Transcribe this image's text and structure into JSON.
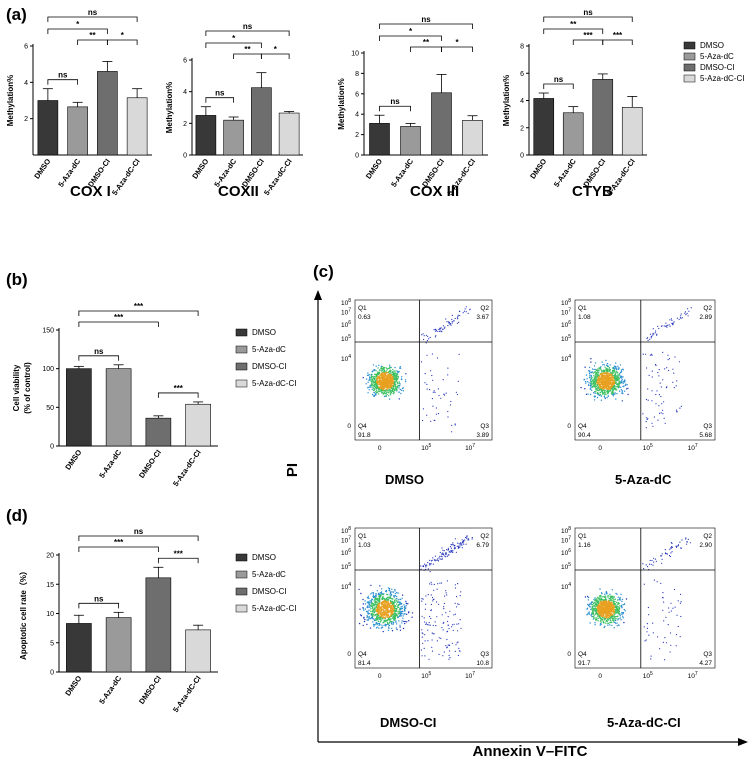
{
  "panels": {
    "a": "(a)",
    "b": "(b)",
    "c": "(c)",
    "d": "(d)"
  },
  "colors": {
    "DMSO": "#383838",
    "5-Aza-dC": "#9a9a9a",
    "DMSO-CI": "#6e6e6e",
    "5-Aza-dC-CI": "#d9d9d9"
  },
  "legend": [
    "DMSO",
    "5-Aza-dC",
    "DMSO-CI",
    "5-Aza-dC-CI"
  ],
  "chart_data": [
    {
      "id": "cox1",
      "type": "bar",
      "panel": "a",
      "title": "COX I",
      "ylabel": "Methylation%",
      "categories": [
        "DMSO",
        "5-Aza-dC",
        "DMSO-CI",
        "5-Aza-dC-CI"
      ],
      "values": [
        3.0,
        2.65,
        4.6,
        3.15
      ],
      "errors": [
        0.65,
        0.25,
        0.55,
        0.5
      ],
      "ylim": [
        0,
        6
      ],
      "yticks": [
        2,
        4,
        6
      ],
      "sig": [
        {
          "a": 0,
          "b": 1,
          "label": "ns"
        },
        {
          "a": 2,
          "b": 1,
          "label": "**"
        },
        {
          "a": 2,
          "b": 3,
          "label": "*"
        },
        {
          "a": 0,
          "b": 2,
          "label": "*"
        },
        {
          "a": 0,
          "b": 3,
          "label": "ns"
        }
      ]
    },
    {
      "id": "cox2",
      "type": "bar",
      "panel": "a",
      "title": "COXII",
      "ylabel": "Methylation%",
      "categories": [
        "DMSO",
        "5-Aza-dC",
        "DMSO-CI",
        "5-Aza-dC-CI"
      ],
      "values": [
        2.5,
        2.2,
        4.25,
        2.65
      ],
      "errors": [
        0.55,
        0.2,
        0.95,
        0.1
      ],
      "ylim": [
        0,
        6
      ],
      "yticks": [
        0,
        2,
        4,
        6
      ],
      "sig": [
        {
          "a": 0,
          "b": 1,
          "label": "ns"
        },
        {
          "a": 2,
          "b": 1,
          "label": "**"
        },
        {
          "a": 2,
          "b": 3,
          "label": "*"
        },
        {
          "a": 0,
          "b": 2,
          "label": "*"
        },
        {
          "a": 0,
          "b": 3,
          "label": "ns"
        }
      ]
    },
    {
      "id": "cox3",
      "type": "bar",
      "panel": "a",
      "title": "COX III",
      "ylabel": "Methylation%",
      "categories": [
        "DMSO",
        "5-Aza-dC",
        "DMSO-CI",
        "5-Aza-dC-CI"
      ],
      "values": [
        3.1,
        2.8,
        6.1,
        3.4
      ],
      "errors": [
        0.8,
        0.3,
        1.8,
        0.45
      ],
      "ylim": [
        0,
        10
      ],
      "yticks": [
        0,
        2,
        4,
        6,
        8,
        10
      ],
      "sig": [
        {
          "a": 0,
          "b": 1,
          "label": "ns"
        },
        {
          "a": 2,
          "b": 1,
          "label": "**"
        },
        {
          "a": 2,
          "b": 3,
          "label": "*"
        },
        {
          "a": 0,
          "b": 2,
          "label": "*"
        },
        {
          "a": 0,
          "b": 3,
          "label": "ns"
        }
      ]
    },
    {
      "id": "ctyb",
      "type": "bar",
      "panel": "a",
      "title": "CTYB",
      "ylabel": "Methylation%",
      "categories": [
        "DMSO",
        "5-Aza-dC",
        "DMSO-CI",
        "5-Aza-dC-CI"
      ],
      "values": [
        4.15,
        3.1,
        5.55,
        3.5
      ],
      "errors": [
        0.4,
        0.45,
        0.4,
        0.8
      ],
      "ylim": [
        0,
        8
      ],
      "yticks": [
        0,
        2,
        4,
        6,
        8
      ],
      "sig": [
        {
          "a": 0,
          "b": 1,
          "label": "ns"
        },
        {
          "a": 2,
          "b": 1,
          "label": "***"
        },
        {
          "a": 2,
          "b": 3,
          "label": "***"
        },
        {
          "a": 0,
          "b": 2,
          "label": "**"
        },
        {
          "a": 0,
          "b": 3,
          "label": "ns"
        }
      ]
    },
    {
      "id": "viability",
      "type": "bar",
      "panel": "b",
      "title": "",
      "ylabel": "Cell viability",
      "ylabel2": "(% of control)",
      "categories": [
        "DMSO",
        "5-Aza-dC",
        "DMSO-CI",
        "5-Aza-dC-CI"
      ],
      "values": [
        100,
        100,
        36,
        54
      ],
      "errors": [
        3,
        5,
        3,
        3
      ],
      "ylim": [
        0,
        150
      ],
      "yticks": [
        0,
        50,
        100,
        150
      ],
      "sig": [
        {
          "a": 0,
          "b": 1,
          "label": "ns"
        },
        {
          "a": 2,
          "b": 3,
          "label": "***"
        },
        {
          "a": 0,
          "b": 2,
          "label": "***"
        },
        {
          "a": 0,
          "b": 3,
          "label": "***"
        }
      ]
    },
    {
      "id": "apoptosis",
      "type": "bar",
      "panel": "d",
      "title": "",
      "ylabel": "Apoptotic cell rate（%）",
      "categories": [
        "DMSO",
        "5-Aza-dC",
        "DMSO-CI",
        "5-Aza-dC-CI"
      ],
      "values": [
        8.3,
        9.3,
        16.1,
        7.2
      ],
      "errors": [
        1.4,
        0.9,
        1.8,
        0.8
      ],
      "ylim": [
        0,
        20
      ],
      "yticks": [
        0,
        5,
        10,
        15,
        20
      ],
      "sig": [
        {
          "a": 0,
          "b": 1,
          "label": "ns"
        },
        {
          "a": 2,
          "b": 3,
          "label": "***"
        },
        {
          "a": 0,
          "b": 2,
          "label": "***"
        },
        {
          "a": 0,
          "b": 3,
          "label": "ns"
        }
      ]
    },
    {
      "id": "flow",
      "type": "scatter",
      "panel": "c",
      "xlabel": "Annexin V–FITC",
      "ylabel": "PI",
      "xticks": [
        "0",
        "10^5",
        "10^7"
      ],
      "yticks": [
        "0",
        "10^4",
        "10^5",
        "10^6",
        "10^7",
        "10^8"
      ],
      "plots": [
        {
          "title": "DMSO",
          "Q1": "0.63",
          "Q2": "3.67",
          "Q3": "3.89",
          "Q4": "91.8"
        },
        {
          "title": "5-Aza-dC",
          "Q1": "1.08",
          "Q2": "2.89",
          "Q3": "5.68",
          "Q4": "90.4"
        },
        {
          "title": "DMSO-CI",
          "Q1": "1.03",
          "Q2": "6.79",
          "Q3": "10.8",
          "Q4": "81.4"
        },
        {
          "title": "5-Aza-dC-CI",
          "Q1": "1.16",
          "Q2": "2.90",
          "Q3": "4.27",
          "Q4": "91.7"
        }
      ]
    }
  ]
}
